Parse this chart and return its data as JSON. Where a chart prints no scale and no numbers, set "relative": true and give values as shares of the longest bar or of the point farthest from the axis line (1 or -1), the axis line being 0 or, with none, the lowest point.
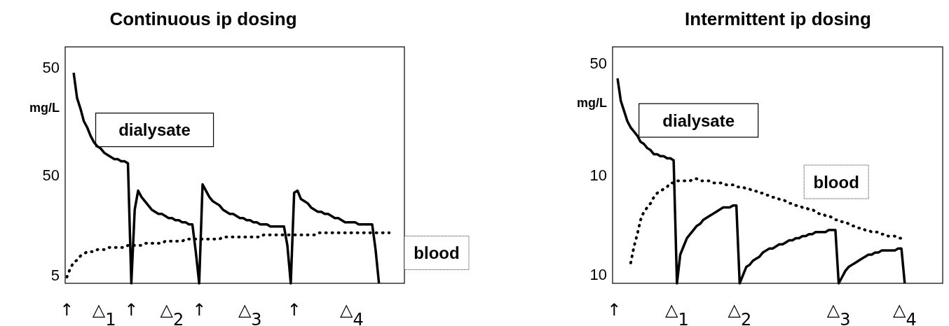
{
  "chart_data": [
    {
      "type": "line",
      "title": "Continuous ip dosing",
      "ylabel": "mg/L",
      "relative": true,
      "marker": "none",
      "categories": [
        "↑",
        null,
        null,
        null,
        null,
        null,
        null,
        null,
        null,
        null,
        null,
        "△$_{1}$",
        null,
        null,
        null,
        null,
        null,
        null,
        null,
        "↑",
        null,
        null,
        null,
        null,
        null,
        null,
        null,
        null,
        null,
        null,
        null,
        "△$_{2}$",
        null,
        null,
        null,
        null,
        null,
        null,
        null,
        "↑",
        null,
        null,
        null,
        null,
        null,
        null,
        null,
        null,
        null,
        null,
        null,
        null,
        null,
        null,
        "△$_{3}$",
        null,
        null,
        null,
        null,
        null,
        null,
        null,
        null,
        null,
        null,
        null,
        null,
        "↑",
        null,
        null,
        null,
        null,
        null,
        null,
        null,
        null,
        null,
        null,
        null,
        null,
        null,
        null,
        null,
        null,
        "△$_{4}$",
        null,
        null,
        null,
        null,
        null,
        null,
        null,
        null,
        null,
        null,
        null,
        null,
        null,
        null,
        null
      ],
      "annotations": [
        "50",
        "50",
        "5"
      ],
      "series": [
        {
          "name": "dialysate",
          "color": "#000000",
          "line_style": "solid",
          "values": [
            null,
            null,
            1,
            0.88,
            0.83,
            0.77,
            0.74,
            0.7,
            0.67,
            0.65,
            0.64,
            0.62,
            0.61,
            0.6,
            0.59,
            0.59,
            0.58,
            0.58,
            0.57,
            0,
            0.35,
            0.44,
            0.41,
            0.39,
            0.37,
            0.35,
            0.34,
            0.33,
            0.33,
            0.32,
            0.31,
            0.31,
            0.3,
            0.3,
            0.29,
            0.29,
            0.28,
            0.28,
            0.15,
            0,
            0.47,
            0.44,
            0.41,
            0.39,
            0.38,
            0.37,
            0.35,
            0.34,
            0.33,
            0.33,
            0.32,
            0.31,
            0.31,
            0.3,
            0.3,
            0.29,
            0.29,
            0.28,
            0.28,
            0.28,
            0.27,
            0.27,
            0.27,
            0.27,
            0.27,
            0.18,
            0,
            0.43,
            0.44,
            0.4,
            0.39,
            0.38,
            0.36,
            0.35,
            0.34,
            0.34,
            0.33,
            0.33,
            0.32,
            0.31,
            0.31,
            0.3,
            0.29,
            0.29,
            0.29,
            0.29,
            0.28,
            0.28,
            0.28,
            0.28,
            0.28,
            0.16,
            0,
            null,
            null,
            null,
            null,
            null,
            null,
            null
          ]
        },
        {
          "name": "blood",
          "color": "#000000",
          "line_style": "dotted",
          "values": [
            0.03,
            0.07,
            0.1,
            0.11,
            0.13,
            0.14,
            0.15,
            0.15,
            0.15,
            0.16,
            0.16,
            0.16,
            0.17,
            0.17,
            0.17,
            0.17,
            0.17,
            0.17,
            0.18,
            0.18,
            0.18,
            0.18,
            0.18,
            0.19,
            0.19,
            0.19,
            0.19,
            0.19,
            0.19,
            0.2,
            0.2,
            0.2,
            0.2,
            0.2,
            0.2,
            0.21,
            0.21,
            0.21,
            0.21,
            0.21,
            0.21,
            0.21,
            0.21,
            0.21,
            0.21,
            0.21,
            0.22,
            0.22,
            0.22,
            0.22,
            0.22,
            0.22,
            0.22,
            0.22,
            0.22,
            0.22,
            0.22,
            0.22,
            0.23,
            0.23,
            0.23,
            0.23,
            0.23,
            0.23,
            0.23,
            0.23,
            0.23,
            0.23,
            0.23,
            0.23,
            0.23,
            0.23,
            0.23,
            0.23,
            0.24,
            0.24,
            0.24,
            0.24,
            0.24,
            0.24,
            0.24,
            0.24,
            0.24,
            0.24,
            0.24,
            0.24,
            0.24,
            0.24,
            0.24,
            0.24,
            0.24,
            0.24,
            0.24,
            0.24,
            0.24,
            0.24,
            null,
            null,
            null,
            null
          ]
        }
      ]
    },
    {
      "type": "line",
      "title": "Intermittent ip dosing",
      "ylabel": "mg/L",
      "relative": true,
      "marker": "none",
      "categories": [
        "↑",
        null,
        null,
        null,
        null,
        null,
        null,
        null,
        null,
        null,
        null,
        null,
        null,
        null,
        null,
        null,
        null,
        null,
        null,
        "△$_{1}$",
        null,
        null,
        null,
        null,
        null,
        null,
        null,
        null,
        null,
        null,
        null,
        null,
        null,
        null,
        null,
        null,
        null,
        null,
        "△$_{2}$",
        null,
        null,
        null,
        null,
        null,
        null,
        null,
        null,
        null,
        null,
        null,
        null,
        null,
        null,
        null,
        null,
        null,
        null,
        null,
        null,
        null,
        null,
        null,
        null,
        null,
        null,
        null,
        null,
        null,
        "△$_{3}$",
        null,
        null,
        null,
        null,
        null,
        null,
        null,
        null,
        null,
        null,
        null,
        null,
        null,
        null,
        null,
        null,
        null,
        null,
        null,
        "△$_{4}$",
        null,
        null,
        null,
        null,
        null,
        null,
        null,
        null,
        null,
        null,
        null
      ],
      "annotations": [
        "50",
        "10",
        "10"
      ],
      "series": [
        {
          "name": "dialysate",
          "color": "#000000",
          "line_style": "solid",
          "values": [
            null,
            1,
            0.89,
            0.84,
            0.79,
            0.76,
            0.74,
            0.72,
            0.69,
            0.68,
            0.66,
            0.65,
            0.63,
            0.63,
            0.62,
            0.62,
            0.61,
            0.61,
            0.6,
            0,
            0.14,
            0.18,
            0.22,
            0.24,
            0.26,
            0.28,
            0.29,
            0.31,
            0.32,
            0.33,
            0.34,
            0.35,
            0.36,
            0.37,
            0.37,
            0.37,
            0.38,
            0.38,
            0,
            0.04,
            0.08,
            0.09,
            0.11,
            0.12,
            0.13,
            0.15,
            0.16,
            0.17,
            0.17,
            0.18,
            0.19,
            0.19,
            0.2,
            0.21,
            0.21,
            0.22,
            0.22,
            0.23,
            0.23,
            0.24,
            0.24,
            0.25,
            0.25,
            0.25,
            0.25,
            0.26,
            0.26,
            0.26,
            0,
            0.03,
            0.06,
            0.08,
            0.09,
            0.1,
            0.11,
            0.12,
            0.13,
            0.14,
            0.14,
            0.15,
            0.15,
            0.16,
            0.16,
            0.16,
            0.16,
            0.16,
            0.17,
            0.17,
            0,
            null,
            null,
            null,
            null,
            null,
            null,
            null,
            null,
            null,
            null,
            null
          ]
        },
        {
          "name": "blood",
          "color": "#000000",
          "line_style": "dotted",
          "values": [
            null,
            null,
            null,
            null,
            null,
            0.1,
            0.18,
            0.24,
            0.31,
            0.35,
            0.37,
            0.39,
            0.42,
            0.44,
            0.45,
            0.46,
            0.47,
            0.49,
            0.49,
            0.5,
            0.5,
            0.5,
            0.5,
            0.5,
            0.51,
            0.51,
            0.5,
            0.5,
            0.5,
            0.5,
            0.49,
            0.49,
            0.49,
            0.49,
            0.48,
            0.48,
            0.48,
            0.47,
            0.47,
            0.47,
            0.46,
            0.46,
            0.45,
            0.45,
            0.44,
            0.44,
            0.43,
            0.43,
            0.42,
            0.42,
            0.41,
            0.41,
            0.4,
            0.39,
            0.39,
            0.38,
            0.38,
            0.37,
            0.37,
            0.36,
            0.36,
            0.35,
            0.34,
            0.34,
            0.33,
            0.33,
            0.32,
            0.31,
            0.31,
            0.3,
            0.3,
            0.29,
            0.28,
            0.28,
            0.27,
            0.27,
            0.26,
            0.26,
            0.25,
            0.25,
            0.25,
            0.24,
            0.24,
            0.23,
            0.23,
            0.23,
            0.22,
            0.22,
            0.22,
            null,
            null,
            null,
            null,
            null,
            null,
            null,
            null,
            null,
            null,
            null
          ]
        }
      ]
    }
  ]
}
